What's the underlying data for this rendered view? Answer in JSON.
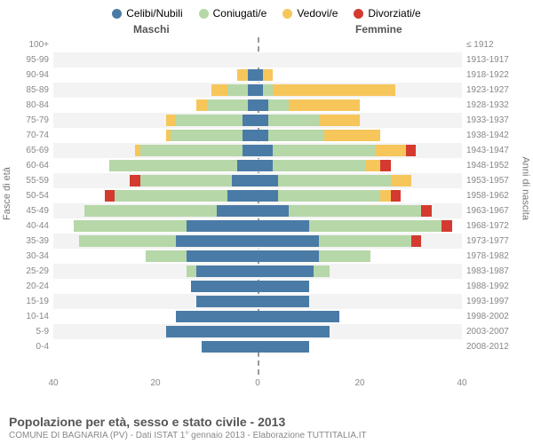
{
  "legend": [
    {
      "label": "Celibi/Nubili",
      "color": "#4a7ba6"
    },
    {
      "label": "Coniugati/e",
      "color": "#b6d7a8"
    },
    {
      "label": "Vedovi/e",
      "color": "#f6c65b"
    },
    {
      "label": "Divorziati/e",
      "color": "#d43a2f"
    }
  ],
  "headers": {
    "male": "Maschi",
    "female": "Femmine"
  },
  "axis_titles": {
    "left": "Fasce di età",
    "right": "Anni di nascita"
  },
  "xaxis": {
    "max": 40,
    "ticks": [
      40,
      20,
      0,
      20,
      40
    ]
  },
  "colors": {
    "celibi": "#4a7ba6",
    "coniugati": "#b6d7a8",
    "vedovi": "#f6c65b",
    "divorziati": "#d43a2f",
    "grid_alt": "#f3f3f3",
    "text": "#888"
  },
  "rows": [
    {
      "age": "100+",
      "birth": "≤ 1912",
      "m": [
        0,
        0,
        0,
        0
      ],
      "f": [
        0,
        0,
        0,
        0
      ]
    },
    {
      "age": "95-99",
      "birth": "1913-1917",
      "m": [
        0,
        0,
        0,
        0
      ],
      "f": [
        0,
        0,
        0,
        0
      ]
    },
    {
      "age": "90-94",
      "birth": "1918-1922",
      "m": [
        2,
        0,
        2,
        0
      ],
      "f": [
        1,
        0,
        2,
        0
      ]
    },
    {
      "age": "85-89",
      "birth": "1923-1927",
      "m": [
        2,
        4,
        3,
        0
      ],
      "f": [
        1,
        2,
        24,
        0
      ]
    },
    {
      "age": "80-84",
      "birth": "1928-1932",
      "m": [
        2,
        8,
        2,
        0
      ],
      "f": [
        2,
        4,
        14,
        0
      ]
    },
    {
      "age": "75-79",
      "birth": "1933-1937",
      "m": [
        3,
        13,
        2,
        0
      ],
      "f": [
        2,
        10,
        8,
        0
      ]
    },
    {
      "age": "70-74",
      "birth": "1938-1942",
      "m": [
        3,
        14,
        1,
        0
      ],
      "f": [
        2,
        11,
        11,
        0
      ]
    },
    {
      "age": "65-69",
      "birth": "1943-1947",
      "m": [
        3,
        20,
        1,
        0
      ],
      "f": [
        3,
        20,
        6,
        2
      ]
    },
    {
      "age": "60-64",
      "birth": "1948-1952",
      "m": [
        4,
        25,
        0,
        0
      ],
      "f": [
        3,
        18,
        3,
        2
      ]
    },
    {
      "age": "55-59",
      "birth": "1953-1957",
      "m": [
        5,
        18,
        0,
        2
      ],
      "f": [
        4,
        22,
        4,
        0
      ]
    },
    {
      "age": "50-54",
      "birth": "1958-1962",
      "m": [
        6,
        22,
        0,
        2
      ],
      "f": [
        4,
        20,
        2,
        2
      ]
    },
    {
      "age": "45-49",
      "birth": "1963-1967",
      "m": [
        8,
        26,
        0,
        0
      ],
      "f": [
        6,
        26,
        0,
        2
      ]
    },
    {
      "age": "40-44",
      "birth": "1968-1972",
      "m": [
        14,
        22,
        0,
        0
      ],
      "f": [
        10,
        26,
        0,
        2
      ]
    },
    {
      "age": "35-39",
      "birth": "1973-1977",
      "m": [
        16,
        19,
        0,
        0
      ],
      "f": [
        12,
        18,
        0,
        2
      ]
    },
    {
      "age": "30-34",
      "birth": "1978-1982",
      "m": [
        14,
        8,
        0,
        0
      ],
      "f": [
        12,
        10,
        0,
        0
      ]
    },
    {
      "age": "25-29",
      "birth": "1983-1987",
      "m": [
        12,
        2,
        0,
        0
      ],
      "f": [
        11,
        3,
        0,
        0
      ]
    },
    {
      "age": "20-24",
      "birth": "1988-1992",
      "m": [
        13,
        0,
        0,
        0
      ],
      "f": [
        10,
        0,
        0,
        0
      ]
    },
    {
      "age": "15-19",
      "birth": "1993-1997",
      "m": [
        12,
        0,
        0,
        0
      ],
      "f": [
        10,
        0,
        0,
        0
      ]
    },
    {
      "age": "10-14",
      "birth": "1998-2002",
      "m": [
        16,
        0,
        0,
        0
      ],
      "f": [
        16,
        0,
        0,
        0
      ]
    },
    {
      "age": "5-9",
      "birth": "2003-2007",
      "m": [
        18,
        0,
        0,
        0
      ],
      "f": [
        14,
        0,
        0,
        0
      ]
    },
    {
      "age": "0-4",
      "birth": "2008-2012",
      "m": [
        11,
        0,
        0,
        0
      ],
      "f": [
        10,
        0,
        0,
        0
      ]
    }
  ],
  "footer": {
    "title": "Popolazione per età, sesso e stato civile - 2013",
    "subtitle": "COMUNE DI BAGNARIA (PV) - Dati ISTAT 1° gennaio 2013 - Elaborazione TUTTITALIA.IT"
  }
}
